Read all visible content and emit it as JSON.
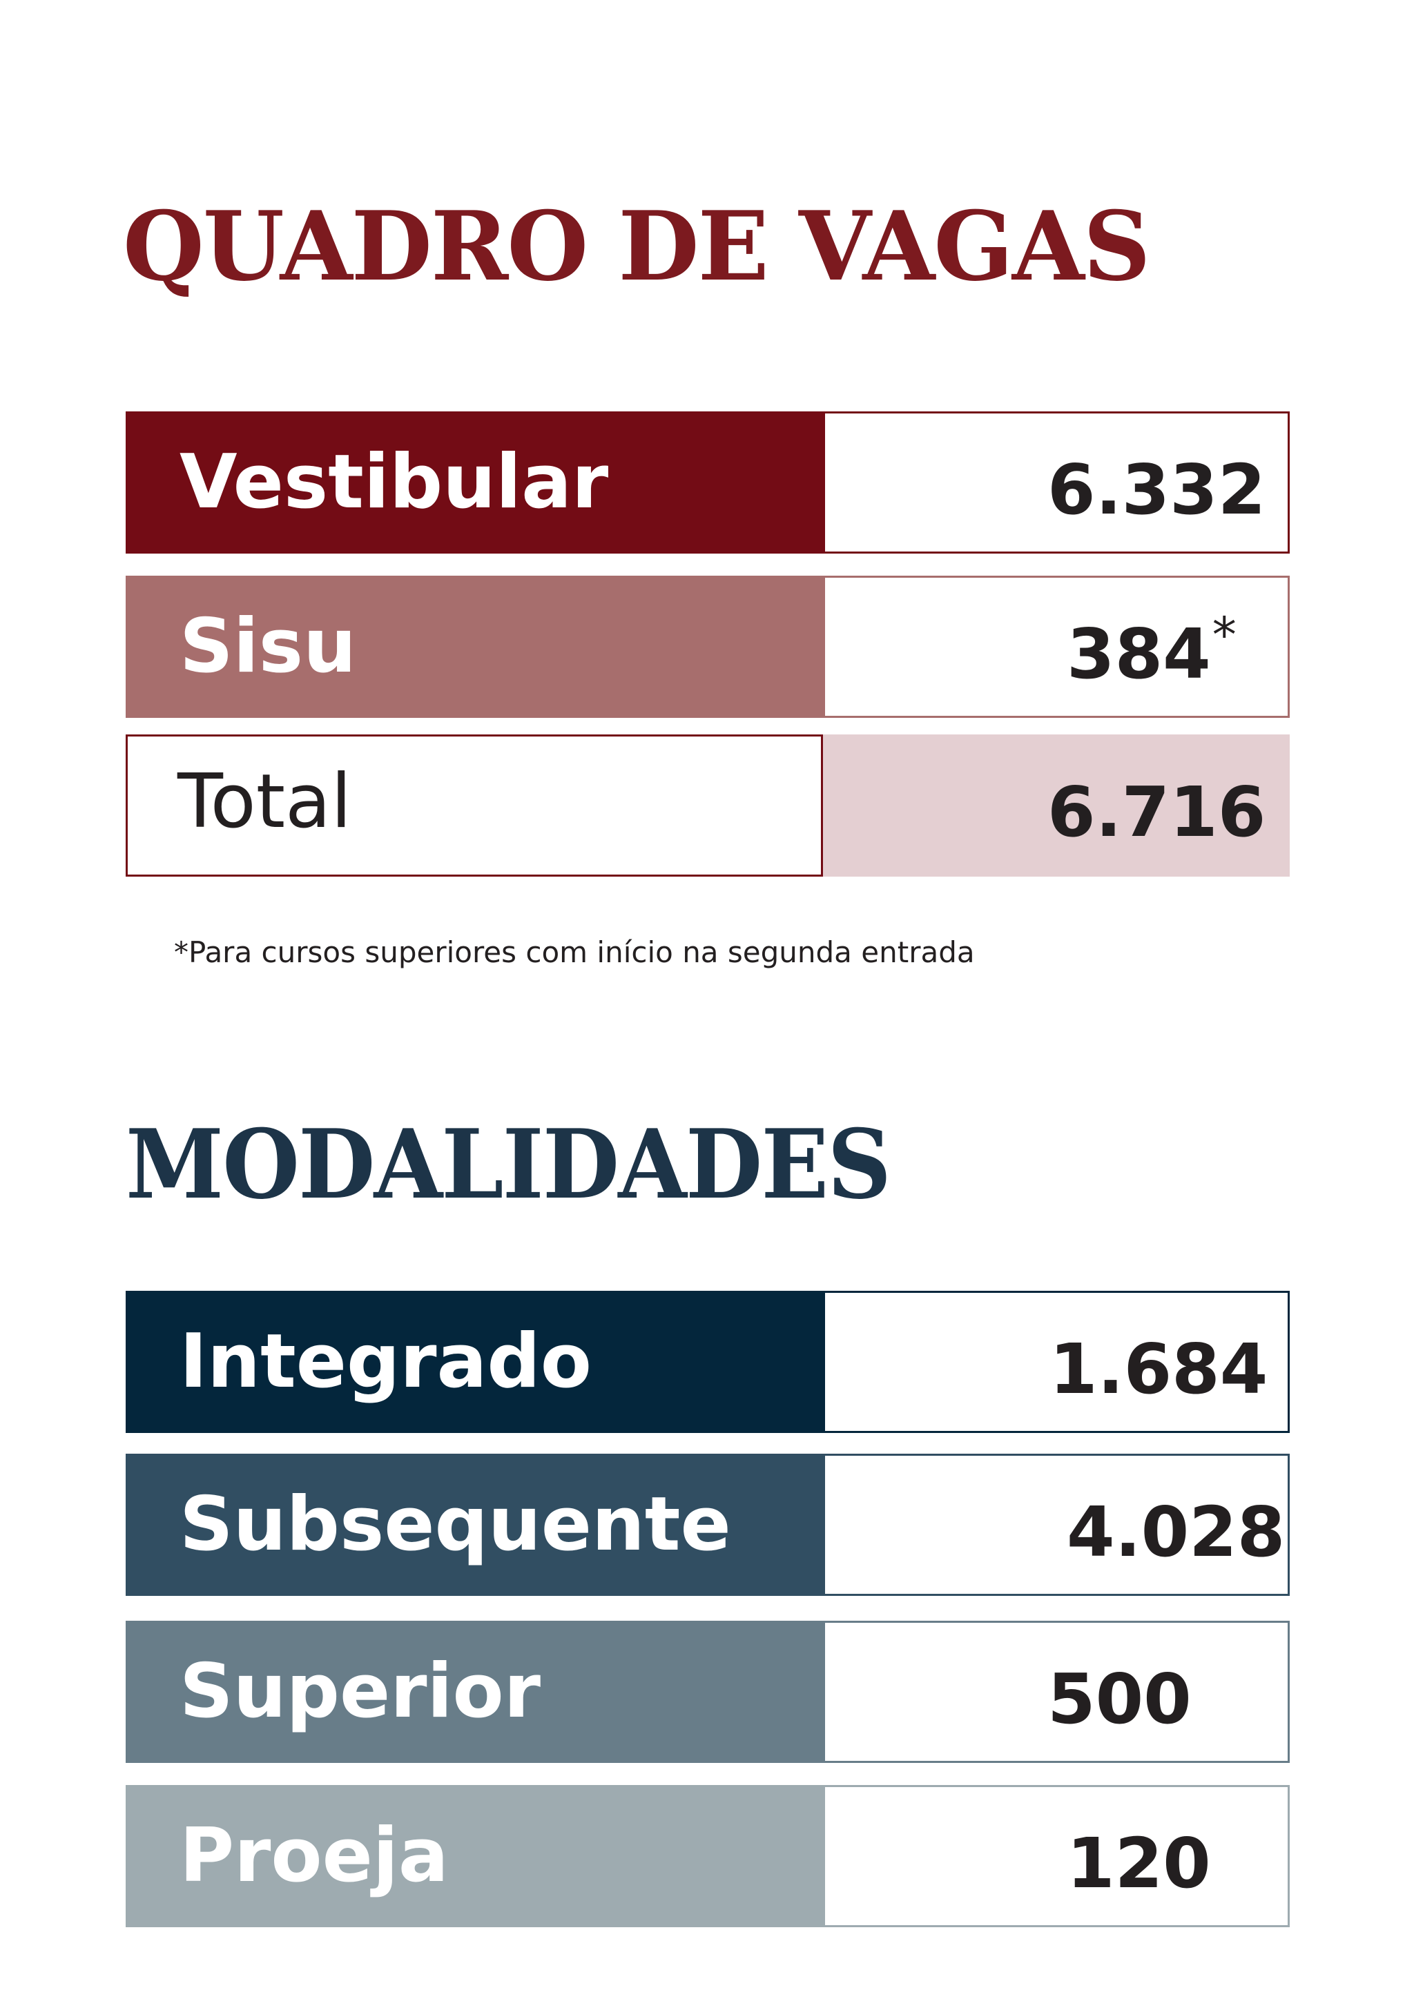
{
  "section_vagas": {
    "title": "QUADRO DE VAGAS",
    "rows": [
      {
        "label": "Vestibular",
        "value": "6.332"
      },
      {
        "label": "Sisu",
        "value": "384",
        "marker": "*"
      },
      {
        "label": "Total",
        "value": "6.716"
      }
    ],
    "footnote": "*Para cursos superiores com início na segunda entrada"
  },
  "section_modalidades": {
    "title": "MODALIDADES",
    "rows": [
      {
        "label": "Integrado",
        "value": "1.684"
      },
      {
        "label": "Subsequente",
        "value": "4.028"
      },
      {
        "label": "Superior",
        "value": "500"
      },
      {
        "label": "Proeja",
        "value": "120"
      }
    ]
  },
  "colors": {
    "vagas_title": "#7c1a1f",
    "vestibular": "#730c15",
    "sisu": "#a76e6d",
    "total_value_bg": "#e4cfd2",
    "modalidades_title": "#1d3448",
    "integrado": "#04263c",
    "subsequente": "#314e62",
    "superior": "#687d89",
    "proeja": "#9eabb0"
  }
}
